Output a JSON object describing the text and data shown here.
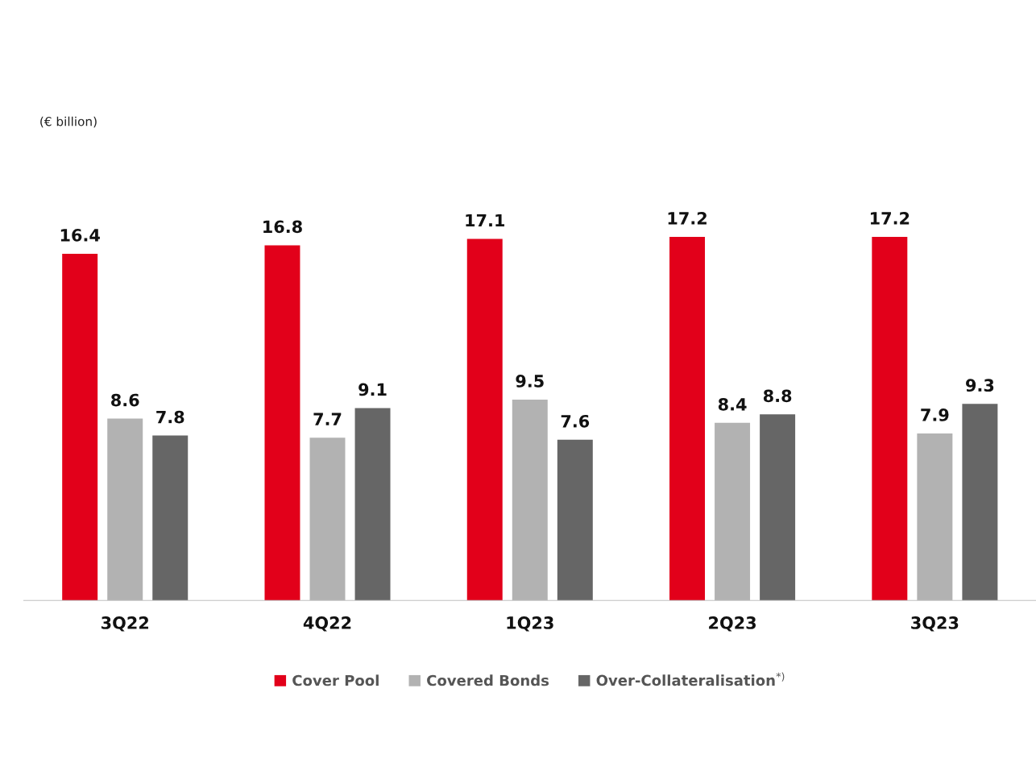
{
  "chart_data": {
    "type": "bar",
    "categories": [
      "3Q22",
      "4Q22",
      "1Q23",
      "2Q23",
      "3Q23"
    ],
    "series": [
      {
        "name": "Cover Pool",
        "color": "#e2001a",
        "values": [
          16.4,
          16.8,
          17.1,
          17.2,
          17.2
        ]
      },
      {
        "name": "Covered Bonds",
        "color": "#b2b2b2",
        "values": [
          8.6,
          7.7,
          9.5,
          8.4,
          7.9
        ]
      },
      {
        "name": "Over-Collateralisation$^{*)}$",
        "color": "#666666",
        "values": [
          7.8,
          9.1,
          7.6,
          8.8,
          9.3
        ]
      }
    ],
    "annotations": [
      "(€ billion)"
    ],
    "data_labels": true,
    "legend": "bottom",
    "grid": false
  }
}
